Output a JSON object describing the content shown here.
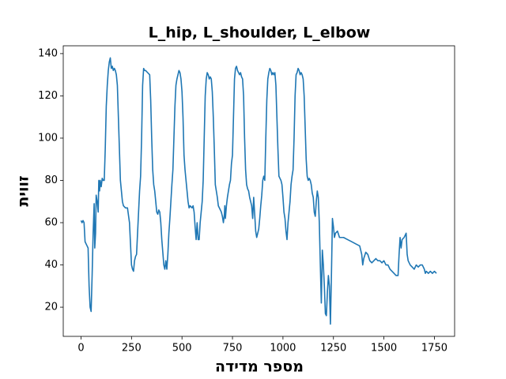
{
  "chart_data": {
    "type": "line",
    "title": "L_hip, L_shoulder, L_elbow",
    "x_label": "מספר מדידה",
    "y_label": "זווית",
    "xlim": [
      -88,
      1850
    ],
    "ylim": [
      6.2,
      143.7
    ],
    "xticks": [
      0,
      250,
      500,
      750,
      1000,
      1250,
      1500,
      1750
    ],
    "yticks": [
      20,
      40,
      60,
      80,
      100,
      120,
      140
    ],
    "x": [
      0,
      5,
      10,
      15,
      20,
      30,
      35,
      40,
      45,
      50,
      55,
      60,
      65,
      68,
      72,
      75,
      80,
      85,
      88,
      92,
      95,
      100,
      105,
      110,
      115,
      120,
      125,
      130,
      135,
      140,
      145,
      150,
      155,
      160,
      165,
      170,
      175,
      180,
      185,
      190,
      195,
      200,
      205,
      210,
      220,
      230,
      240,
      245,
      250,
      255,
      260,
      265,
      270,
      275,
      280,
      285,
      290,
      295,
      300,
      305,
      310,
      315,
      320,
      330,
      340,
      345,
      350,
      355,
      360,
      365,
      370,
      375,
      380,
      385,
      390,
      395,
      400,
      405,
      410,
      415,
      420,
      425,
      430,
      435,
      440,
      445,
      450,
      455,
      460,
      465,
      470,
      475,
      480,
      485,
      490,
      495,
      500,
      505,
      510,
      515,
      520,
      525,
      530,
      535,
      540,
      550,
      555,
      560,
      565,
      570,
      575,
      580,
      585,
      590,
      595,
      600,
      605,
      610,
      615,
      620,
      625,
      630,
      635,
      640,
      645,
      650,
      655,
      660,
      665,
      670,
      675,
      680,
      685,
      690,
      695,
      700,
      705,
      710,
      712,
      715,
      720,
      725,
      730,
      735,
      740,
      745,
      750,
      755,
      760,
      765,
      770,
      775,
      780,
      785,
      790,
      795,
      800,
      805,
      810,
      815,
      820,
      825,
      830,
      835,
      840,
      845,
      850,
      855,
      860,
      865,
      870,
      875,
      880,
      885,
      890,
      895,
      900,
      905,
      910,
      915,
      920,
      925,
      930,
      935,
      940,
      945,
      950,
      955,
      960,
      965,
      970,
      975,
      980,
      985,
      990,
      995,
      1000,
      1005,
      1010,
      1015,
      1020,
      1025,
      1030,
      1035,
      1040,
      1045,
      1050,
      1055,
      1060,
      1065,
      1070,
      1075,
      1080,
      1085,
      1090,
      1095,
      1100,
      1105,
      1110,
      1115,
      1120,
      1125,
      1130,
      1135,
      1140,
      1145,
      1150,
      1155,
      1160,
      1165,
      1170,
      1175,
      1180,
      1185,
      1190,
      1195,
      1200,
      1205,
      1210,
      1215,
      1220,
      1225,
      1230,
      1235,
      1240,
      1245,
      1250,
      1255,
      1260,
      1270,
      1280,
      1300,
      1320,
      1340,
      1360,
      1380,
      1390,
      1395,
      1400,
      1410,
      1420,
      1430,
      1440,
      1450,
      1460,
      1470,
      1480,
      1490,
      1500,
      1510,
      1520,
      1530,
      1540,
      1550,
      1560,
      1570,
      1575,
      1580,
      1585,
      1590,
      1600,
      1610,
      1615,
      1620,
      1630,
      1640,
      1650,
      1660,
      1670,
      1680,
      1690,
      1700,
      1705,
      1710,
      1720,
      1730,
      1740,
      1750,
      1760
    ],
    "series": [
      {
        "color": "#1f77b4",
        "values": [
          61,
          60,
          61,
          60,
          51,
          49,
          48,
          30,
          20,
          18,
          35,
          55,
          69,
          48,
          55,
          73,
          70,
          65,
          80,
          75,
          80,
          77,
          81,
          80,
          80,
          95,
          115,
          125,
          132,
          136,
          138,
          133,
          134,
          132,
          133,
          132,
          130,
          125,
          110,
          95,
          80,
          75,
          70,
          68,
          67,
          67,
          60,
          50,
          40,
          38,
          37,
          42,
          44,
          45,
          55,
          65,
          75,
          82,
          100,
          125,
          133,
          132,
          132,
          131,
          130,
          118,
          100,
          85,
          78,
          75,
          70,
          65,
          64,
          66,
          65,
          60,
          52,
          46,
          40,
          38,
          42,
          38,
          45,
          55,
          62,
          70,
          78,
          85,
          100,
          115,
          125,
          128,
          130,
          132,
          131,
          128,
          122,
          110,
          92,
          85,
          80,
          75,
          70,
          67,
          68,
          67,
          68,
          65,
          58,
          52,
          60,
          52,
          52,
          60,
          65,
          70,
          80,
          100,
          120,
          128,
          131,
          130,
          128,
          129,
          128,
          122,
          110,
          95,
          78,
          75,
          72,
          68,
          67,
          66,
          65,
          63,
          60,
          64,
          68,
          62,
          68,
          72,
          75,
          78,
          80,
          88,
          92,
          110,
          128,
          133,
          134,
          132,
          131,
          130,
          131,
          129,
          128,
          120,
          100,
          85,
          78,
          76,
          75,
          72,
          70,
          68,
          62,
          72,
          64,
          56,
          53,
          55,
          57,
          62,
          68,
          73,
          80,
          82,
          80,
          100,
          118,
          128,
          131,
          133,
          132,
          130,
          131,
          130,
          131,
          125,
          110,
          95,
          82,
          81,
          80,
          78,
          72,
          65,
          62,
          56,
          52,
          60,
          65,
          70,
          78,
          82,
          85,
          100,
          120,
          130,
          131,
          133,
          132,
          130,
          131,
          130,
          128,
          120,
          105,
          90,
          82,
          80,
          81,
          80,
          78,
          74,
          72,
          65,
          63,
          70,
          75,
          72,
          60,
          40,
          22,
          47,
          40,
          30,
          17,
          16,
          27,
          35,
          30,
          12,
          35,
          62,
          58,
          53,
          55,
          56,
          53,
          53,
          52,
          51,
          50,
          49,
          45,
          40,
          43,
          46,
          45,
          42,
          41,
          42,
          43,
          42,
          42,
          41,
          42,
          40,
          40,
          38,
          37,
          36,
          35,
          35,
          45,
          53,
          48,
          52,
          53,
          55,
          45,
          42,
          40,
          39,
          38,
          40,
          39,
          40,
          40,
          38,
          36,
          37,
          36,
          37,
          36,
          37,
          36
        ]
      }
    ]
  }
}
